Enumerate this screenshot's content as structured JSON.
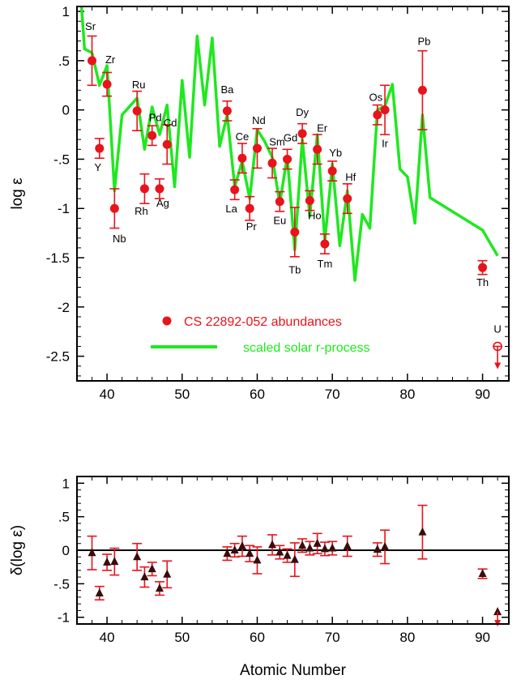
{
  "chart_data": [
    {
      "type": "scatter",
      "ylabel": "log ε",
      "xlim": [
        36,
        93.5
      ],
      "ylim": [
        -2.75,
        1.05
      ],
      "x_ticks": [
        40,
        50,
        60,
        70,
        80,
        90
      ],
      "y_ticks": [
        {
          "v": 1,
          "label": "1"
        },
        {
          "v": 0.5,
          "label": ".5"
        },
        {
          "v": 0,
          "label": "0"
        },
        {
          "v": -0.5,
          "label": "-.5"
        },
        {
          "v": -1,
          "label": "-1"
        },
        {
          "v": -1.5,
          "label": "-1.5"
        },
        {
          "v": -2,
          "label": "-2"
        },
        {
          "v": -2.5,
          "label": "-2.5"
        }
      ],
      "legend_position": "lower-center",
      "series": [
        {
          "name": "CS 22892-052 abundances",
          "color": "#e8131b",
          "marker": "circle",
          "points": [
            {
              "el": "Sr",
              "z": 38,
              "y": 0.5,
              "err": 0.25
            },
            {
              "el": "Y",
              "z": 39,
              "y": -0.39,
              "err": 0.1
            },
            {
              "el": "Zr",
              "z": 40,
              "y": 0.26,
              "err": 0.12
            },
            {
              "el": "Nb",
              "z": 41,
              "y": -1.0,
              "err": 0.2
            },
            {
              "el": "Ru",
              "z": 44,
              "y": -0.01,
              "err": 0.2
            },
            {
              "el": "Rh",
              "z": 45,
              "y": -0.8,
              "err": 0.15
            },
            {
              "el": "Pd",
              "z": 46,
              "y": -0.26,
              "err": 0.1
            },
            {
              "el": "Ag",
              "z": 47,
              "y": -0.8,
              "err": 0.1
            },
            {
              "el": "Cd",
              "z": 48,
              "y": -0.35,
              "err": 0.2
            },
            {
              "el": "Ba",
              "z": 56,
              "y": -0.01,
              "err": 0.1
            },
            {
              "el": "La",
              "z": 57,
              "y": -0.81,
              "err": 0.1
            },
            {
              "el": "Ce",
              "z": 58,
              "y": -0.49,
              "err": 0.15
            },
            {
              "el": "Pr",
              "z": 59,
              "y": -1.0,
              "err": 0.12
            },
            {
              "el": "Nd",
              "z": 60,
              "y": -0.39,
              "err": 0.2
            },
            {
              "el": "Sm",
              "z": 62,
              "y": -0.54,
              "err": 0.15
            },
            {
              "el": "Eu",
              "z": 63,
              "y": -0.93,
              "err": 0.1
            },
            {
              "el": "Gd",
              "z": 64,
              "y": -0.5,
              "err": 0.1
            },
            {
              "el": "Tb",
              "z": 65,
              "y": -1.24,
              "err": 0.25
            },
            {
              "el": "Dy",
              "z": 66,
              "y": -0.24,
              "err": 0.1
            },
            {
              "el": "Ho",
              "z": 67,
              "y": -0.92,
              "err": 0.1
            },
            {
              "el": "Er",
              "z": 68,
              "y": -0.4,
              "err": 0.15
            },
            {
              "el": "Tm",
              "z": 69,
              "y": -1.36,
              "err": 0.1
            },
            {
              "el": "Yb",
              "z": 70,
              "y": -0.62,
              "err": 0.1
            },
            {
              "el": "Hf",
              "z": 72,
              "y": -0.9,
              "err": 0.15
            },
            {
              "el": "Os",
              "z": 76,
              "y": -0.05,
              "err": 0.1
            },
            {
              "el": "Ir",
              "z": 77,
              "y": 0.0,
              "err": 0.25
            },
            {
              "el": "Pb",
              "z": 82,
              "y": 0.2,
              "err": 0.4
            },
            {
              "el": "Th",
              "z": 90,
              "y": -1.6,
              "err": 0.07
            }
          ],
          "upper_limit": {
            "el": "U",
            "z": 92,
            "y": -2.4
          }
        },
        {
          "name": "scaled solar r-process",
          "color": "#1fe81f",
          "marker": "line",
          "x": [
            36.6,
            37,
            38,
            39,
            40,
            41,
            42,
            44,
            45,
            46,
            47,
            48,
            49,
            50,
            51,
            52,
            53,
            54,
            55,
            56,
            57,
            58,
            59,
            60,
            61,
            62,
            63,
            64,
            65,
            66,
            67,
            68,
            69,
            70,
            71,
            72,
            73,
            74,
            75,
            76,
            77,
            78,
            79,
            80,
            81,
            82,
            83,
            90,
            92
          ],
          "y": [
            1.05,
            0.62,
            0.58,
            0.25,
            0.45,
            -0.82,
            -0.05,
            0.12,
            -0.4,
            0.03,
            -0.25,
            0.05,
            -0.78,
            0.3,
            -0.48,
            0.75,
            0.05,
            0.73,
            -0.37,
            -0.05,
            -0.78,
            -0.52,
            -0.9,
            -0.2,
            -0.32,
            -0.48,
            -0.95,
            -0.47,
            -1.42,
            -0.3,
            -1.08,
            -0.25,
            -1.33,
            -0.55,
            -1.38,
            -0.82,
            -1.73,
            -1.06,
            -1.2,
            0.0,
            0.04,
            0.26,
            -0.6,
            -0.68,
            -1.15,
            -0.05,
            -0.89,
            -1.22,
            -1.48
          ]
        }
      ],
      "upper_limit_label": "U"
    },
    {
      "type": "scatter",
      "xlabel": "Atomic Number",
      "ylabel": "δ(log ε)",
      "xlim": [
        36,
        93.5
      ],
      "ylim": [
        -1.1,
        1.1
      ],
      "x_ticks": [
        40,
        50,
        60,
        70,
        80,
        90
      ],
      "y_ticks": [
        {
          "v": 1,
          "label": "1"
        },
        {
          "v": 0.5,
          "label": ".5"
        },
        {
          "v": 0,
          "label": "0"
        },
        {
          "v": -0.5,
          "label": "-.5"
        },
        {
          "v": -1,
          "label": "-1"
        }
      ],
      "reference_line": 0,
      "series": [
        {
          "name": "",
          "marker": "triangle",
          "marker_color": "#3a0c0c",
          "err_color": "#e8131b",
          "points": [
            {
              "z": 38,
              "y": -0.04,
              "err": 0.25
            },
            {
              "z": 39,
              "y": -0.64,
              "err": 0.1
            },
            {
              "z": 40,
              "y": -0.18,
              "err": 0.12
            },
            {
              "z": 41,
              "y": -0.17,
              "err": 0.2
            },
            {
              "z": 44,
              "y": -0.1,
              "err": 0.2
            },
            {
              "z": 45,
              "y": -0.4,
              "err": 0.15
            },
            {
              "z": 46,
              "y": -0.28,
              "err": 0.1
            },
            {
              "z": 47,
              "y": -0.57,
              "err": 0.1
            },
            {
              "z": 48,
              "y": -0.36,
              "err": 0.2
            },
            {
              "z": 56,
              "y": -0.05,
              "err": 0.1
            },
            {
              "z": 57,
              "y": 0.0,
              "err": 0.1
            },
            {
              "z": 58,
              "y": 0.06,
              "err": 0.15
            },
            {
              "z": 59,
              "y": -0.05,
              "err": 0.12
            },
            {
              "z": 60,
              "y": -0.15,
              "err": 0.2
            },
            {
              "z": 62,
              "y": 0.08,
              "err": 0.15
            },
            {
              "z": 63,
              "y": -0.03,
              "err": 0.1
            },
            {
              "z": 64,
              "y": -0.08,
              "err": 0.1
            },
            {
              "z": 65,
              "y": -0.14,
              "err": 0.25
            },
            {
              "z": 66,
              "y": 0.07,
              "err": 0.1
            },
            {
              "z": 67,
              "y": 0.03,
              "err": 0.1
            },
            {
              "z": 68,
              "y": 0.1,
              "err": 0.15
            },
            {
              "z": 69,
              "y": 0.02,
              "err": 0.1
            },
            {
              "z": 70,
              "y": 0.03,
              "err": 0.1
            },
            {
              "z": 72,
              "y": 0.06,
              "err": 0.15
            },
            {
              "z": 76,
              "y": 0.01,
              "err": 0.1
            },
            {
              "z": 77,
              "y": 0.05,
              "err": 0.25
            },
            {
              "z": 82,
              "y": 0.27,
              "err": 0.4
            },
            {
              "z": 90,
              "y": -0.35,
              "err": 0.07
            }
          ],
          "upper_limit": {
            "z": 92,
            "y": -0.92
          }
        }
      ]
    }
  ]
}
